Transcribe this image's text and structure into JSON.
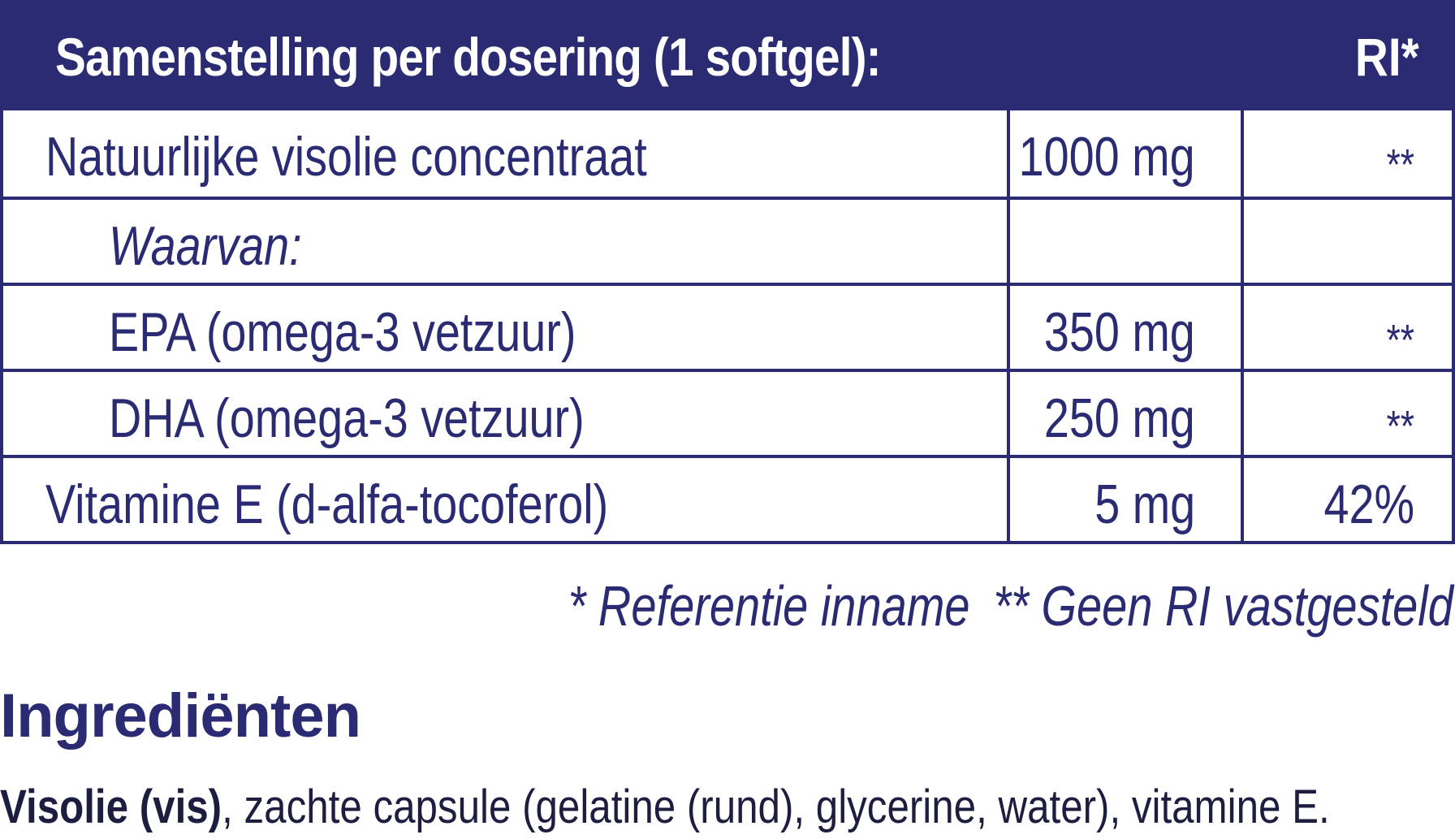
{
  "table": {
    "header": {
      "title": "Samenstelling per dosering (1 softgel):",
      "ri": "RI*"
    },
    "rows": [
      {
        "label": "Natuurlijke visolie concentraat",
        "amount": "1000 mg",
        "ri": "**"
      },
      {
        "label": "Waarvan:",
        "amount": "",
        "ri": ""
      },
      {
        "label": "EPA (omega-3 vetzuur)",
        "amount": "350 mg",
        "ri": "**"
      },
      {
        "label": "DHA (omega-3 vetzuur)",
        "amount": "250 mg",
        "ri": "**"
      },
      {
        "label": "Vitamine E (d-alfa-tocoferol)",
        "amount": "5 mg",
        "ri": "42%"
      }
    ]
  },
  "footnotes": {
    "ri_note": "* Referentie inname",
    "no_ri_note": "** Geen RI vastgesteld"
  },
  "ingredients": {
    "heading": "Ingrediënten",
    "bold_part": "Visolie (vis)",
    "rest": ", zachte capsule (gelatine (rund), glycerine, water), vitamine E."
  },
  "colors": {
    "navy": "#2a2b73",
    "text_dark": "#1d1e3f",
    "white": "#ffffff"
  }
}
